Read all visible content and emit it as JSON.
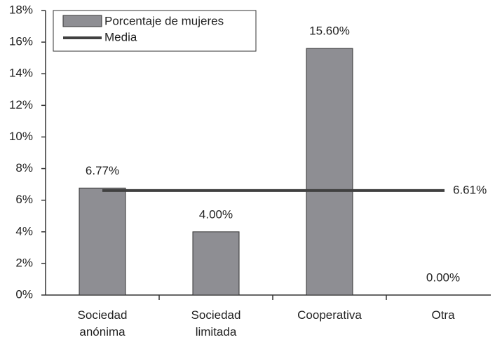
{
  "chart_data": {
    "type": "bar",
    "categories": [
      "Sociedad anónima",
      "Sociedad limitada",
      "Cooperativa",
      "Otra"
    ],
    "series": [
      {
        "name": "Porcentaje de mujeres",
        "color": "#8e8e93",
        "values": [
          6.77,
          4.0,
          15.6,
          0.0
        ],
        "value_labels": [
          "6.77%",
          "4.00%",
          "15.60%",
          "0.00%"
        ]
      }
    ],
    "mean": {
      "name": "Media",
      "color": "#404040",
      "value": 6.61,
      "label": "6.61%"
    },
    "ylim": [
      0,
      18
    ],
    "yticks": [
      {
        "value": 0,
        "label": "0%"
      },
      {
        "value": 2,
        "label": "2%"
      },
      {
        "value": 4,
        "label": "4%"
      },
      {
        "value": 6,
        "label": "6%"
      },
      {
        "value": 8,
        "label": "8%"
      },
      {
        "value": 10,
        "label": "10%"
      },
      {
        "value": 12,
        "label": "12%"
      },
      {
        "value": 14,
        "label": "14%"
      },
      {
        "value": 16,
        "label": "16%"
      },
      {
        "value": 18,
        "label": "18%"
      }
    ],
    "legend": "top-left"
  }
}
